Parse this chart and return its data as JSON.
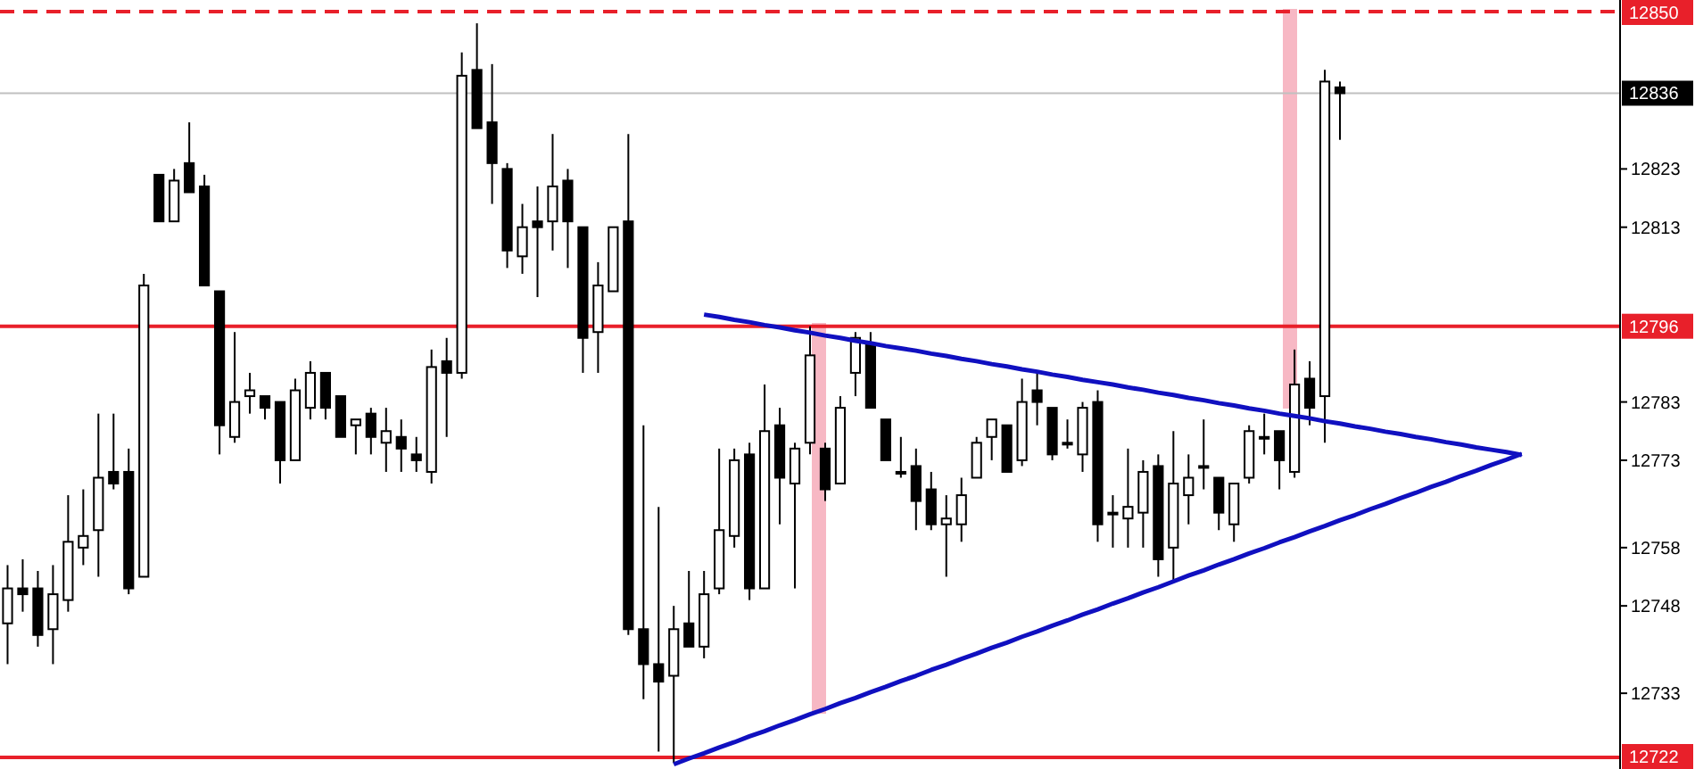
{
  "chart_data": {
    "type": "candlestick",
    "tick_labels": "y",
    "grid": false,
    "categories": [
      null,
      null,
      null,
      null,
      null,
      null,
      null,
      null,
      null,
      null,
      null,
      null,
      null,
      null,
      null,
      null,
      null,
      null,
      null,
      null,
      null,
      null,
      null,
      null,
      null,
      null,
      null,
      null,
      null,
      null,
      null,
      null,
      null,
      null,
      null,
      null,
      null,
      null,
      null,
      null,
      null,
      null,
      null,
      null,
      null,
      null,
      null,
      null,
      null,
      null,
      null,
      null,
      null,
      null,
      null,
      null,
      null,
      null,
      null,
      null,
      null,
      null,
      null,
      null,
      null,
      null,
      null,
      null,
      null,
      null,
      null,
      null,
      null,
      null,
      null,
      null,
      null,
      null,
      null,
      null,
      null,
      null,
      null,
      null,
      null,
      null,
      null,
      null,
      null,
      null,
      null,
      null,
      null,
      null,
      null,
      null,
      null,
      null,
      null,
      null,
      null,
      null,
      null,
      null,
      null,
      null,
      null
    ],
    "ylim": [
      12720,
      12852
    ],
    "yticks": [
      12733,
      12748,
      12758,
      12773,
      12783,
      12813,
      12823
    ],
    "ohlc": [
      [
        12745,
        12755,
        12738,
        12751
      ],
      [
        12751,
        12756,
        12747,
        12750
      ],
      [
        12751,
        12754,
        12741,
        12743
      ],
      [
        12744,
        12755,
        12738,
        12750
      ],
      [
        12749,
        12767,
        12747,
        12759
      ],
      [
        12758,
        12768,
        12755,
        12760
      ],
      [
        12761,
        12781,
        12753,
        12770
      ],
      [
        12771,
        12781,
        12768,
        12769
      ],
      [
        12771,
        12775,
        12750,
        12751
      ],
      [
        12753,
        12805,
        12753,
        12803
      ],
      [
        12822,
        12822,
        12814,
        12814
      ],
      [
        12814,
        12823,
        12814,
        12821
      ],
      [
        12824,
        12831,
        12819,
        12819
      ],
      [
        12820,
        12822,
        12803,
        12803
      ],
      [
        12802,
        12802,
        12774,
        12779
      ],
      [
        12777,
        12795,
        12776,
        12783
      ],
      [
        12784,
        12788,
        12781,
        12785
      ],
      [
        12784,
        12784,
        12780,
        12782
      ],
      [
        12783,
        12783,
        12769,
        12773
      ],
      [
        12773,
        12787,
        12773,
        12785
      ],
      [
        12782,
        12790,
        12780,
        12788
      ],
      [
        12788,
        12788,
        12780,
        12782
      ],
      [
        12784,
        12784,
        12777,
        12777
      ],
      [
        12779,
        12780,
        12774,
        12780
      ],
      [
        12781,
        12782,
        12774,
        12777
      ],
      [
        12776,
        12782,
        12771,
        12778
      ],
      [
        12777,
        12780,
        12771,
        12775
      ],
      [
        12774,
        12777,
        12771,
        12773
      ],
      [
        12771,
        12792,
        12769,
        12789
      ],
      [
        12790,
        12794,
        12777,
        12788
      ],
      [
        12788,
        12843,
        12787,
        12839
      ],
      [
        12840,
        12848,
        12830,
        12830
      ],
      [
        12831,
        12841,
        12817,
        12824
      ],
      [
        12823,
        12824,
        12806,
        12809
      ],
      [
        12808,
        12817,
        12805,
        12813
      ],
      [
        12814,
        12820,
        12801,
        12813
      ],
      [
        12814,
        12829,
        12809,
        12820
      ],
      [
        12821,
        12823,
        12806,
        12814
      ],
      [
        12813,
        12813,
        12788,
        12794
      ],
      [
        12795,
        12807,
        12788,
        12803
      ],
      [
        12802,
        12813,
        12802,
        12813
      ],
      [
        12814,
        12829,
        12743,
        12744
      ],
      [
        12744,
        12779,
        12732,
        12738
      ],
      [
        12738,
        12765,
        12723,
        12735
      ],
      [
        12736,
        12748,
        12721,
        12744
      ],
      [
        12745,
        12754,
        12741,
        12741
      ],
      [
        12741,
        12754,
        12739,
        12750
      ],
      [
        12751,
        12775,
        12750,
        12761
      ],
      [
        12760,
        12775,
        12758,
        12773
      ],
      [
        12774,
        12776,
        12749,
        12751
      ],
      [
        12751,
        12786,
        12751,
        12778
      ],
      [
        12779,
        12782,
        12762,
        12770
      ],
      [
        12769,
        12776,
        12751,
        12775
      ],
      [
        12776,
        12796,
        12774,
        12791
      ],
      [
        12775,
        12776,
        12766,
        12768
      ],
      [
        12769,
        12784,
        12769,
        12782
      ],
      [
        12788,
        12795,
        12784,
        12794
      ],
      [
        12793,
        12795,
        12782,
        12782
      ],
      [
        12780,
        12780,
        12773,
        12773
      ],
      [
        12771,
        12777,
        12770,
        12771
      ],
      [
        12772,
        12775,
        12761,
        12766
      ],
      [
        12768,
        12771,
        12761,
        12762
      ],
      [
        12762,
        12767,
        12753,
        12763
      ],
      [
        12762,
        12770,
        12759,
        12767
      ],
      [
        12770,
        12777,
        12770,
        12776
      ],
      [
        12777,
        12780,
        12773,
        12780
      ],
      [
        12779,
        12779,
        12771,
        12771
      ],
      [
        12773,
        12787,
        12772,
        12783
      ],
      [
        12785,
        12788,
        12779,
        12783
      ],
      [
        12782,
        12782,
        12773,
        12774
      ],
      [
        12776,
        12780,
        12775,
        12776
      ],
      [
        12774,
        12783,
        12771,
        12782
      ],
      [
        12783,
        12785,
        12759,
        12762
      ],
      [
        12764,
        12767,
        12758,
        12764
      ],
      [
        12763,
        12775,
        12758,
        12765
      ],
      [
        12764,
        12773,
        12758,
        12771
      ],
      [
        12772,
        12774,
        12753,
        12756
      ],
      [
        12758,
        12778,
        12752,
        12769
      ],
      [
        12767,
        12774,
        12762,
        12770
      ],
      [
        12772,
        12780,
        12768,
        12772
      ],
      [
        12770,
        12770,
        12761,
        12764
      ],
      [
        12762,
        12769,
        12759,
        12769
      ],
      [
        12770,
        12779,
        12769,
        12778
      ],
      [
        12777,
        12781,
        12774,
        12777
      ],
      [
        12778,
        12778,
        12768,
        12773
      ],
      [
        12771,
        12792,
        12770,
        12786
      ],
      [
        12787,
        12790,
        12779,
        12782
      ],
      [
        12784,
        12840,
        12776,
        12838
      ],
      [
        12837,
        12838,
        12828,
        12836
      ],
      null,
      null,
      null,
      null,
      null,
      null,
      null,
      null,
      null,
      null,
      null,
      null,
      null,
      null,
      null,
      null,
      null,
      null
    ],
    "series": [
      {
        "type": "line",
        "color": "#1010c0",
        "values": [
          null,
          null,
          null,
          null,
          null,
          null,
          null,
          null,
          null,
          null,
          null,
          null,
          null,
          null,
          null,
          null,
          null,
          null,
          null,
          null,
          null,
          null,
          null,
          null,
          null,
          null,
          null,
          null,
          null,
          null,
          null,
          null,
          null,
          null,
          null,
          null,
          null,
          null,
          null,
          null,
          null,
          null,
          null,
          null,
          null,
          null,
          12798.0,
          12797.6,
          12797.1,
          12796.7,
          12796.2,
          12795.8,
          12795.3,
          12794.9,
          12794.4,
          12794.0,
          12793.5,
          12793.1,
          12792.6,
          12792.2,
          12791.8,
          12791.3,
          12790.9,
          12790.4,
          12790.0,
          12789.5,
          12789.1,
          12788.6,
          12788.2,
          12787.7,
          12787.3,
          12786.8,
          12786.4,
          12786.0,
          12785.5,
          12785.1,
          12784.6,
          12784.2,
          12783.7,
          12783.3,
          12782.8,
          12782.4,
          12781.9,
          12781.5,
          12781.0,
          12780.6,
          12780.2,
          12779.7,
          12779.3,
          12778.8,
          12778.4,
          12777.9,
          12777.5,
          12777.0,
          12776.6,
          12776.1,
          12775.7,
          12775.2,
          12774.8,
          12774.4,
          12773.9,
          null,
          null,
          null,
          null,
          null,
          null
        ]
      },
      {
        "type": "line",
        "color": "#1010c0",
        "values": [
          null,
          null,
          null,
          null,
          null,
          null,
          null,
          null,
          null,
          null,
          null,
          null,
          null,
          null,
          null,
          null,
          null,
          null,
          null,
          null,
          null,
          null,
          null,
          null,
          null,
          null,
          null,
          null,
          null,
          null,
          null,
          null,
          null,
          null,
          null,
          null,
          null,
          null,
          null,
          null,
          null,
          null,
          null,
          null,
          12720.8,
          12721.8,
          12722.7,
          12723.7,
          12724.6,
          12725.6,
          12726.5,
          12727.5,
          12728.4,
          12729.4,
          12730.3,
          12731.3,
          12732.2,
          12733.2,
          12734.1,
          12735.1,
          12736.0,
          12737.0,
          12737.9,
          12738.9,
          12739.8,
          12740.8,
          12741.7,
          12742.7,
          12743.6,
          12744.6,
          12745.5,
          12746.5,
          12747.4,
          12748.4,
          12749.3,
          12750.3,
          12751.2,
          12752.2,
          12753.2,
          12754.1,
          12755.1,
          12756.0,
          12757.0,
          12757.9,
          12758.9,
          12759.8,
          12760.8,
          12761.7,
          12762.7,
          12763.6,
          12764.6,
          12765.5,
          12766.5,
          12767.4,
          12768.4,
          12769.3,
          12770.3,
          12771.2,
          12772.2,
          12773.1,
          12774.1,
          null,
          null,
          null,
          null,
          null,
          null
        ]
      }
    ],
    "ref_lines": [
      {
        "axis": "y",
        "value": 12850,
        "label": "12850",
        "color": "#e8202a",
        "line_style": "dashed"
      },
      {
        "axis": "y",
        "value": 12836,
        "label": "12836",
        "color": "#c0c0c0",
        "line_style": "solid"
      },
      {
        "axis": "y",
        "value": 12796,
        "label": "12796",
        "color": "#e8202a",
        "line_style": "solid"
      },
      {
        "axis": "y",
        "value": 12722,
        "label": "12722",
        "color": "#e8202a",
        "line_style": "solid"
      }
    ]
  }
}
